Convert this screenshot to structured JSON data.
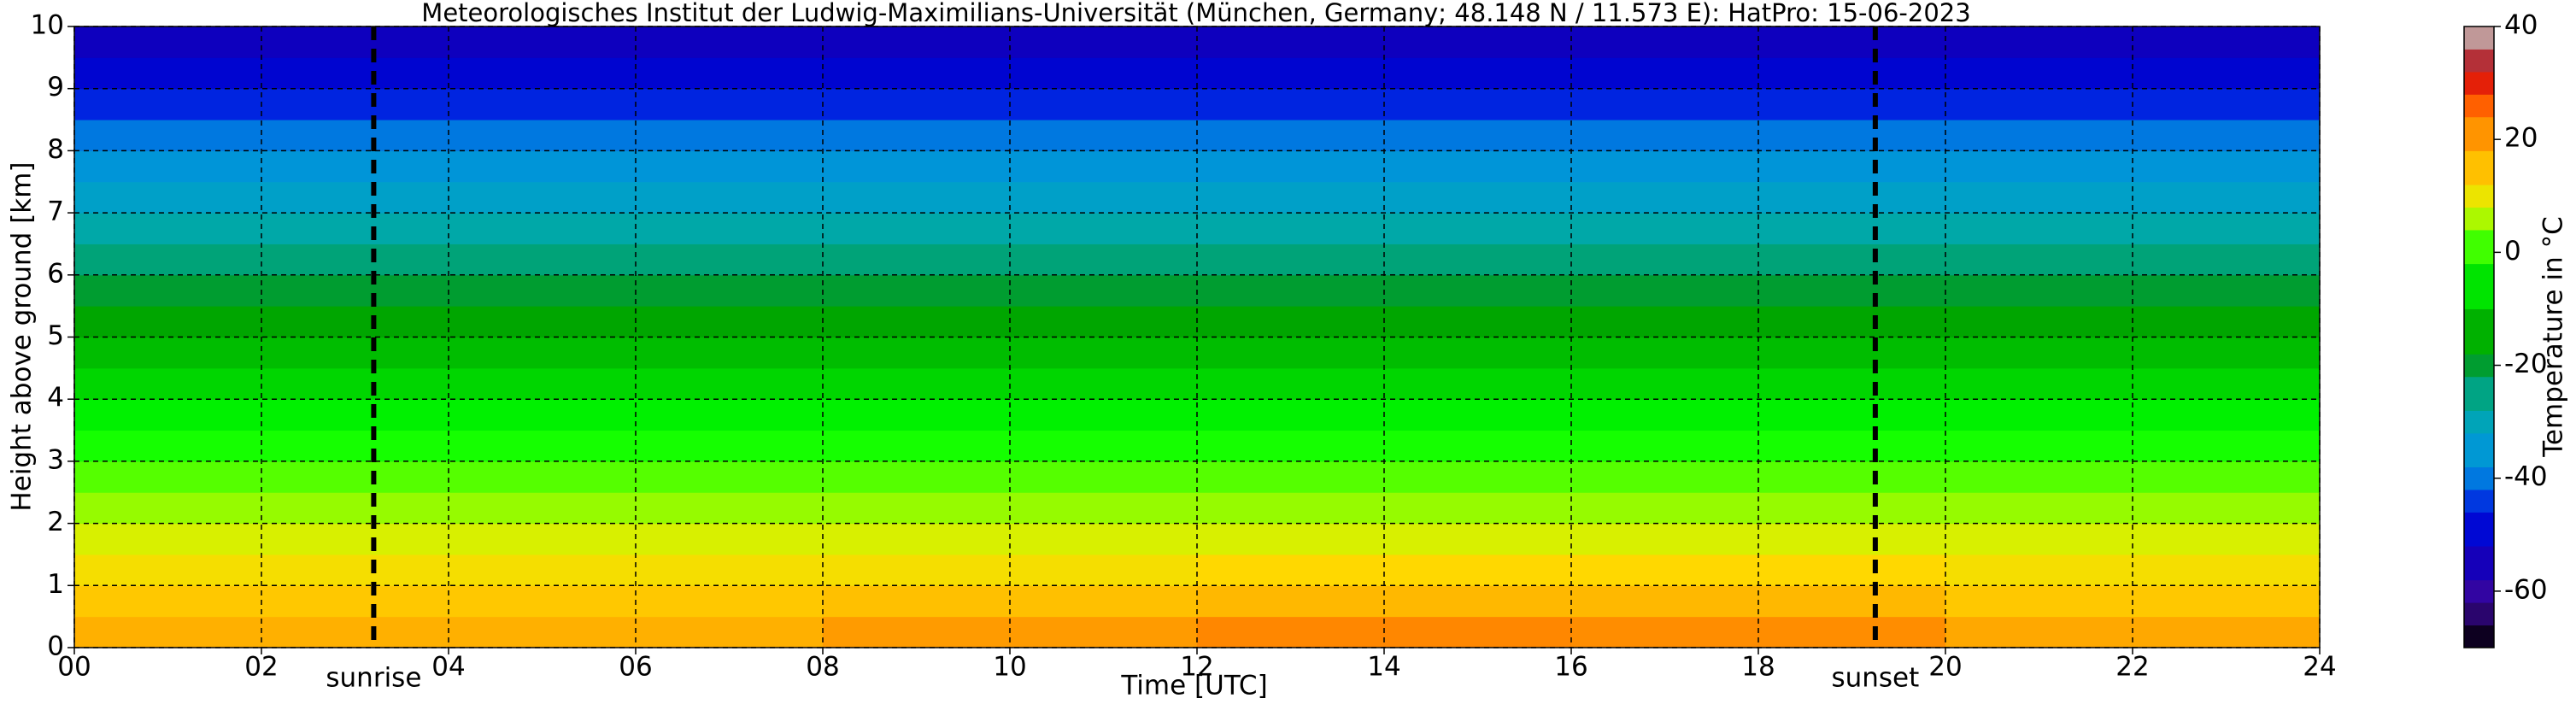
{
  "chart_data": {
    "type": "heatmap",
    "title": "Meteorologisches Institut der Ludwig-Maximilians-Universität (München, Germany; 48.148 N / 11.573 E):    HatPro: 15-06-2023",
    "x_label": "Time [UTC]",
    "y_label": "Height above ground [km]",
    "colorbar_label": "Temperature in °C",
    "x_edges": [
      0,
      4,
      8,
      12,
      16,
      20,
      24
    ],
    "y_edges": [
      0,
      0.5,
      1,
      1.5,
      2,
      2.5,
      3,
      3.5,
      4,
      4.5,
      5,
      5.5,
      6,
      6.5,
      7,
      7.5,
      8,
      8.5,
      9,
      9.5,
      10
    ],
    "z": [
      [
        17,
        17,
        20,
        23,
        22,
        18
      ],
      [
        14,
        14,
        15,
        16,
        16,
        14
      ],
      [
        11,
        11,
        11,
        12,
        12,
        11
      ],
      [
        8,
        8,
        8,
        8,
        8,
        8
      ],
      [
        5,
        5,
        5,
        5,
        5,
        5
      ],
      [
        2,
        2,
        2,
        2,
        2,
        2
      ],
      [
        -1,
        -1,
        -1,
        -1,
        -1,
        -1
      ],
      [
        -4,
        -4,
        -4,
        -4,
        -4,
        -4
      ],
      [
        -8,
        -8,
        -8,
        -8,
        -8,
        -8
      ],
      [
        -12,
        -12,
        -12,
        -12,
        -12,
        -12
      ],
      [
        -16,
        -16,
        -16,
        -16,
        -16,
        -16
      ],
      [
        -20,
        -20,
        -20,
        -20,
        -20,
        -20
      ],
      [
        -24,
        -24,
        -24,
        -24,
        -24,
        -24
      ],
      [
        -28,
        -28,
        -28,
        -28,
        -28,
        -28
      ],
      [
        -32,
        -32,
        -32,
        -32,
        -32,
        -32
      ],
      [
        -36,
        -36,
        -36,
        -36,
        -36,
        -36
      ],
      [
        -40,
        -40,
        -40,
        -40,
        -40,
        -40
      ],
      [
        -45,
        -45,
        -45,
        -45,
        -45,
        -45
      ],
      [
        -50,
        -50,
        -50,
        -50,
        -50,
        -50
      ],
      [
        -54,
        -54,
        -54,
        -54,
        -54,
        -54
      ]
    ],
    "xlim": [
      0,
      24
    ],
    "ylim": [
      0,
      10
    ],
    "xticks": [
      {
        "value": 0,
        "label": "00"
      },
      {
        "value": 2,
        "label": "02"
      },
      {
        "value": 4,
        "label": "04"
      },
      {
        "value": 6,
        "label": "06"
      },
      {
        "value": 8,
        "label": "08"
      },
      {
        "value": 10,
        "label": "10"
      },
      {
        "value": 12,
        "label": "12"
      },
      {
        "value": 14,
        "label": "14"
      },
      {
        "value": 16,
        "label": "16"
      },
      {
        "value": 18,
        "label": "18"
      },
      {
        "value": 20,
        "label": "20"
      },
      {
        "value": 22,
        "label": "22"
      },
      {
        "value": 24,
        "label": "24"
      }
    ],
    "yticks": [
      0,
      1,
      2,
      3,
      4,
      5,
      6,
      7,
      8,
      9,
      10
    ],
    "grid": true,
    "clim": [
      -70,
      40
    ],
    "cticks": [
      -60,
      -40,
      -20,
      0,
      20,
      40
    ],
    "colorscale": [
      [
        -70,
        "#000000"
      ],
      [
        -66,
        "#1a0040"
      ],
      [
        -62,
        "#3a0a9a"
      ],
      [
        -58,
        "#2a00aa"
      ],
      [
        -52,
        "#0000c8"
      ],
      [
        -46,
        "#0010e0"
      ],
      [
        -42,
        "#0060e0"
      ],
      [
        -38,
        "#0090e0"
      ],
      [
        -32,
        "#00a0c8"
      ],
      [
        -28,
        "#00a8a8"
      ],
      [
        -22,
        "#00a060"
      ],
      [
        -18,
        "#009a00"
      ],
      [
        -10,
        "#00c800"
      ],
      [
        -2,
        "#00ff00"
      ],
      [
        4,
        "#80ff00"
      ],
      [
        8,
        "#d8f000"
      ],
      [
        12,
        "#ffd800"
      ],
      [
        18,
        "#ffa800"
      ],
      [
        24,
        "#ff8000"
      ],
      [
        28,
        "#ff4000"
      ],
      [
        32,
        "#c80010"
      ],
      [
        36,
        "#a06060"
      ],
      [
        40,
        "#e0d0d0"
      ]
    ],
    "annotations": [
      {
        "label": "sunrise",
        "x": 3.2
      },
      {
        "label": "sunset",
        "x": 19.25
      }
    ]
  }
}
